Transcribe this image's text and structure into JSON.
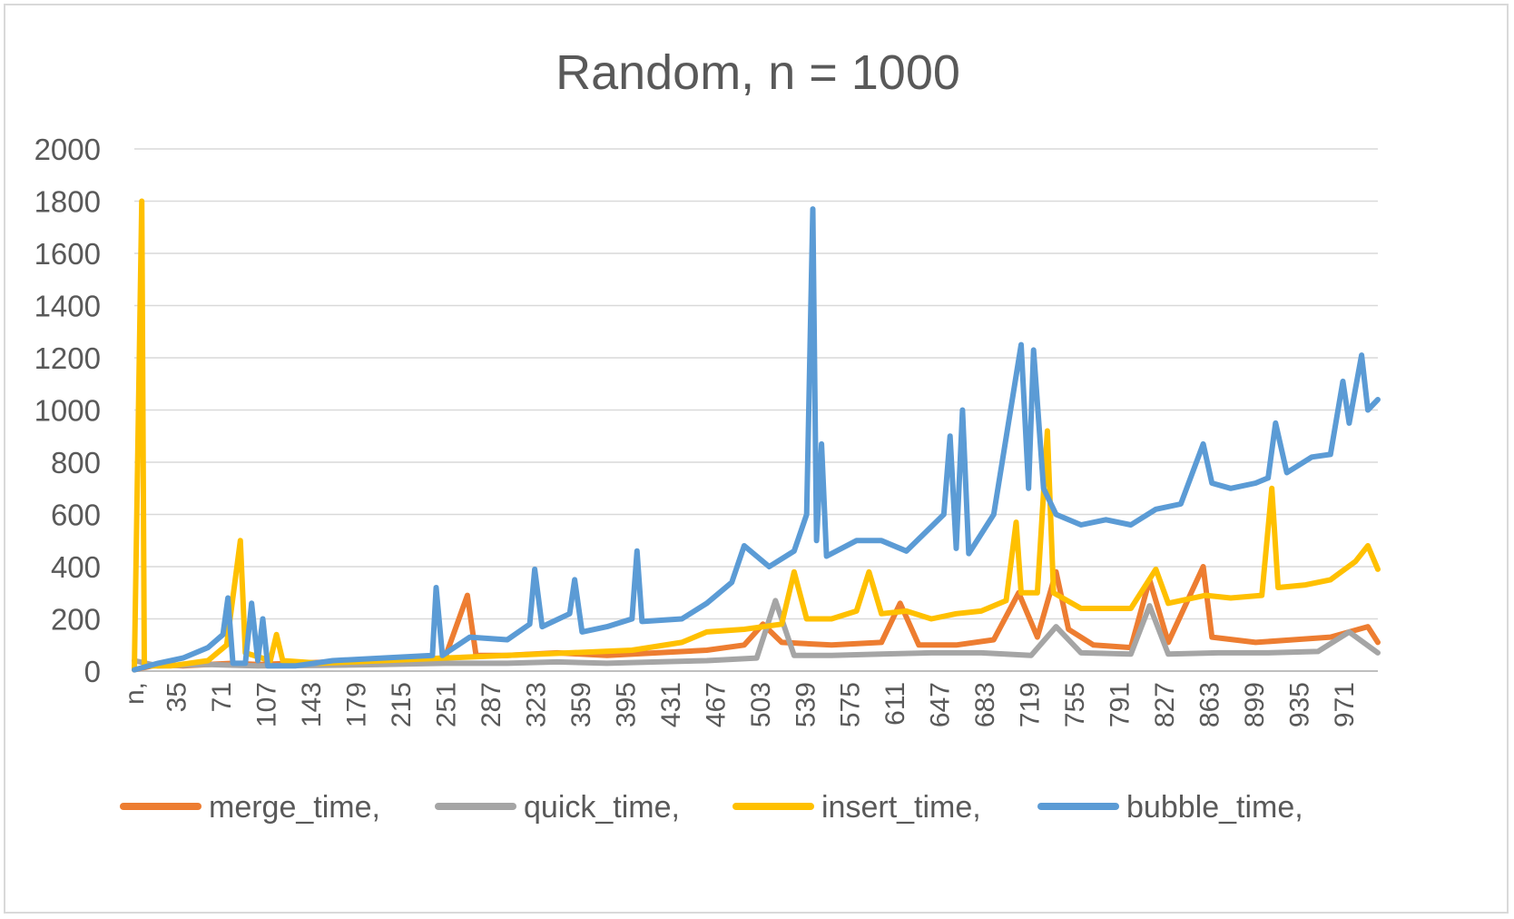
{
  "chart_data": {
    "type": "line",
    "title": "Random, n = 1000",
    "xlabel": "",
    "ylabel": "",
    "ylim": [
      0,
      2000
    ],
    "yticks": [
      0,
      200,
      400,
      600,
      800,
      1000,
      1200,
      1400,
      1600,
      1800,
      2000
    ],
    "xticks": [
      "n,",
      "35",
      "71",
      "107",
      "143",
      "179",
      "215",
      "251",
      "287",
      "323",
      "359",
      "395",
      "431",
      "467",
      "503",
      "539",
      "575",
      "611",
      "647",
      "683",
      "719",
      "755",
      "791",
      "827",
      "863",
      "899",
      "935",
      "971"
    ],
    "grid": true,
    "legend_position": "bottom",
    "series": [
      {
        "name": "merge_time,",
        "color": "#ed7d31",
        "points": [
          [
            1,
            5
          ],
          [
            20,
            25
          ],
          [
            40,
            20
          ],
          [
            60,
            25
          ],
          [
            80,
            30
          ],
          [
            100,
            25
          ],
          [
            130,
            30
          ],
          [
            160,
            35
          ],
          [
            190,
            40
          ],
          [
            220,
            45
          ],
          [
            250,
            50
          ],
          [
            268,
            290
          ],
          [
            275,
            60
          ],
          [
            300,
            60
          ],
          [
            340,
            70
          ],
          [
            380,
            60
          ],
          [
            420,
            70
          ],
          [
            460,
            80
          ],
          [
            490,
            100
          ],
          [
            505,
            180
          ],
          [
            520,
            110
          ],
          [
            560,
            100
          ],
          [
            600,
            110
          ],
          [
            615,
            260
          ],
          [
            630,
            100
          ],
          [
            660,
            100
          ],
          [
            690,
            120
          ],
          [
            710,
            300
          ],
          [
            725,
            130
          ],
          [
            740,
            380
          ],
          [
            750,
            160
          ],
          [
            770,
            100
          ],
          [
            800,
            90
          ],
          [
            815,
            350
          ],
          [
            830,
            110
          ],
          [
            858,
            400
          ],
          [
            865,
            130
          ],
          [
            900,
            110
          ],
          [
            930,
            120
          ],
          [
            960,
            130
          ],
          [
            990,
            170
          ],
          [
            998,
            110
          ]
        ]
      },
      {
        "name": "quick_time,",
        "color": "#a5a5a5",
        "points": [
          [
            1,
            40
          ],
          [
            20,
            20
          ],
          [
            60,
            25
          ],
          [
            100,
            20
          ],
          [
            150,
            22
          ],
          [
            200,
            25
          ],
          [
            250,
            30
          ],
          [
            300,
            30
          ],
          [
            340,
            35
          ],
          [
            380,
            30
          ],
          [
            420,
            35
          ],
          [
            460,
            40
          ],
          [
            500,
            50
          ],
          [
            515,
            270
          ],
          [
            530,
            60
          ],
          [
            560,
            60
          ],
          [
            600,
            65
          ],
          [
            640,
            70
          ],
          [
            680,
            70
          ],
          [
            720,
            60
          ],
          [
            740,
            170
          ],
          [
            760,
            70
          ],
          [
            800,
            65
          ],
          [
            815,
            250
          ],
          [
            830,
            65
          ],
          [
            870,
            70
          ],
          [
            910,
            70
          ],
          [
            950,
            75
          ],
          [
            975,
            150
          ],
          [
            998,
            70
          ]
        ]
      },
      {
        "name": "insert_time,",
        "color": "#ffc000",
        "points": [
          [
            1,
            5
          ],
          [
            7,
            1800
          ],
          [
            9,
            20
          ],
          [
            30,
            20
          ],
          [
            60,
            40
          ],
          [
            75,
            100
          ],
          [
            86,
            500
          ],
          [
            90,
            70
          ],
          [
            110,
            40
          ],
          [
            115,
            140
          ],
          [
            120,
            40
          ],
          [
            150,
            30
          ],
          [
            200,
            40
          ],
          [
            250,
            50
          ],
          [
            300,
            60
          ],
          [
            350,
            70
          ],
          [
            400,
            80
          ],
          [
            440,
            110
          ],
          [
            460,
            150
          ],
          [
            490,
            160
          ],
          [
            520,
            180
          ],
          [
            530,
            380
          ],
          [
            540,
            200
          ],
          [
            560,
            200
          ],
          [
            580,
            230
          ],
          [
            590,
            380
          ],
          [
            600,
            220
          ],
          [
            620,
            230
          ],
          [
            640,
            200
          ],
          [
            660,
            220
          ],
          [
            680,
            230
          ],
          [
            700,
            270
          ],
          [
            708,
            570
          ],
          [
            712,
            300
          ],
          [
            725,
            300
          ],
          [
            733,
            920
          ],
          [
            738,
            300
          ],
          [
            760,
            240
          ],
          [
            800,
            240
          ],
          [
            820,
            390
          ],
          [
            830,
            260
          ],
          [
            860,
            290
          ],
          [
            880,
            280
          ],
          [
            905,
            290
          ],
          [
            913,
            700
          ],
          [
            918,
            320
          ],
          [
            940,
            330
          ],
          [
            960,
            350
          ],
          [
            980,
            420
          ],
          [
            990,
            480
          ],
          [
            998,
            390
          ]
        ]
      },
      {
        "name": "bubble_time,",
        "color": "#5b9bd5",
        "points": [
          [
            1,
            5
          ],
          [
            20,
            30
          ],
          [
            40,
            50
          ],
          [
            60,
            90
          ],
          [
            72,
            140
          ],
          [
            76,
            280
          ],
          [
            80,
            30
          ],
          [
            90,
            30
          ],
          [
            95,
            260
          ],
          [
            100,
            40
          ],
          [
            104,
            200
          ],
          [
            108,
            20
          ],
          [
            130,
            20
          ],
          [
            160,
            40
          ],
          [
            200,
            50
          ],
          [
            240,
            60
          ],
          [
            243,
            320
          ],
          [
            248,
            60
          ],
          [
            270,
            130
          ],
          [
            300,
            120
          ],
          [
            318,
            180
          ],
          [
            322,
            390
          ],
          [
            328,
            170
          ],
          [
            350,
            220
          ],
          [
            354,
            350
          ],
          [
            360,
            150
          ],
          [
            380,
            170
          ],
          [
            400,
            200
          ],
          [
            404,
            460
          ],
          [
            408,
            190
          ],
          [
            440,
            200
          ],
          [
            460,
            260
          ],
          [
            480,
            340
          ],
          [
            490,
            480
          ],
          [
            510,
            400
          ],
          [
            530,
            460
          ],
          [
            540,
            600
          ],
          [
            545,
            1770
          ],
          [
            548,
            500
          ],
          [
            552,
            870
          ],
          [
            556,
            440
          ],
          [
            580,
            500
          ],
          [
            600,
            500
          ],
          [
            620,
            460
          ],
          [
            650,
            600
          ],
          [
            655,
            900
          ],
          [
            660,
            470
          ],
          [
            665,
            1000
          ],
          [
            670,
            450
          ],
          [
            690,
            600
          ],
          [
            712,
            1250
          ],
          [
            718,
            700
          ],
          [
            722,
            1230
          ],
          [
            730,
            700
          ],
          [
            740,
            600
          ],
          [
            760,
            560
          ],
          [
            780,
            580
          ],
          [
            800,
            560
          ],
          [
            820,
            620
          ],
          [
            840,
            640
          ],
          [
            858,
            870
          ],
          [
            865,
            720
          ],
          [
            880,
            700
          ],
          [
            900,
            720
          ],
          [
            910,
            740
          ],
          [
            916,
            950
          ],
          [
            925,
            760
          ],
          [
            945,
            820
          ],
          [
            960,
            830
          ],
          [
            970,
            1110
          ],
          [
            975,
            950
          ],
          [
            985,
            1210
          ],
          [
            990,
            1000
          ],
          [
            998,
            1040
          ]
        ]
      }
    ]
  }
}
